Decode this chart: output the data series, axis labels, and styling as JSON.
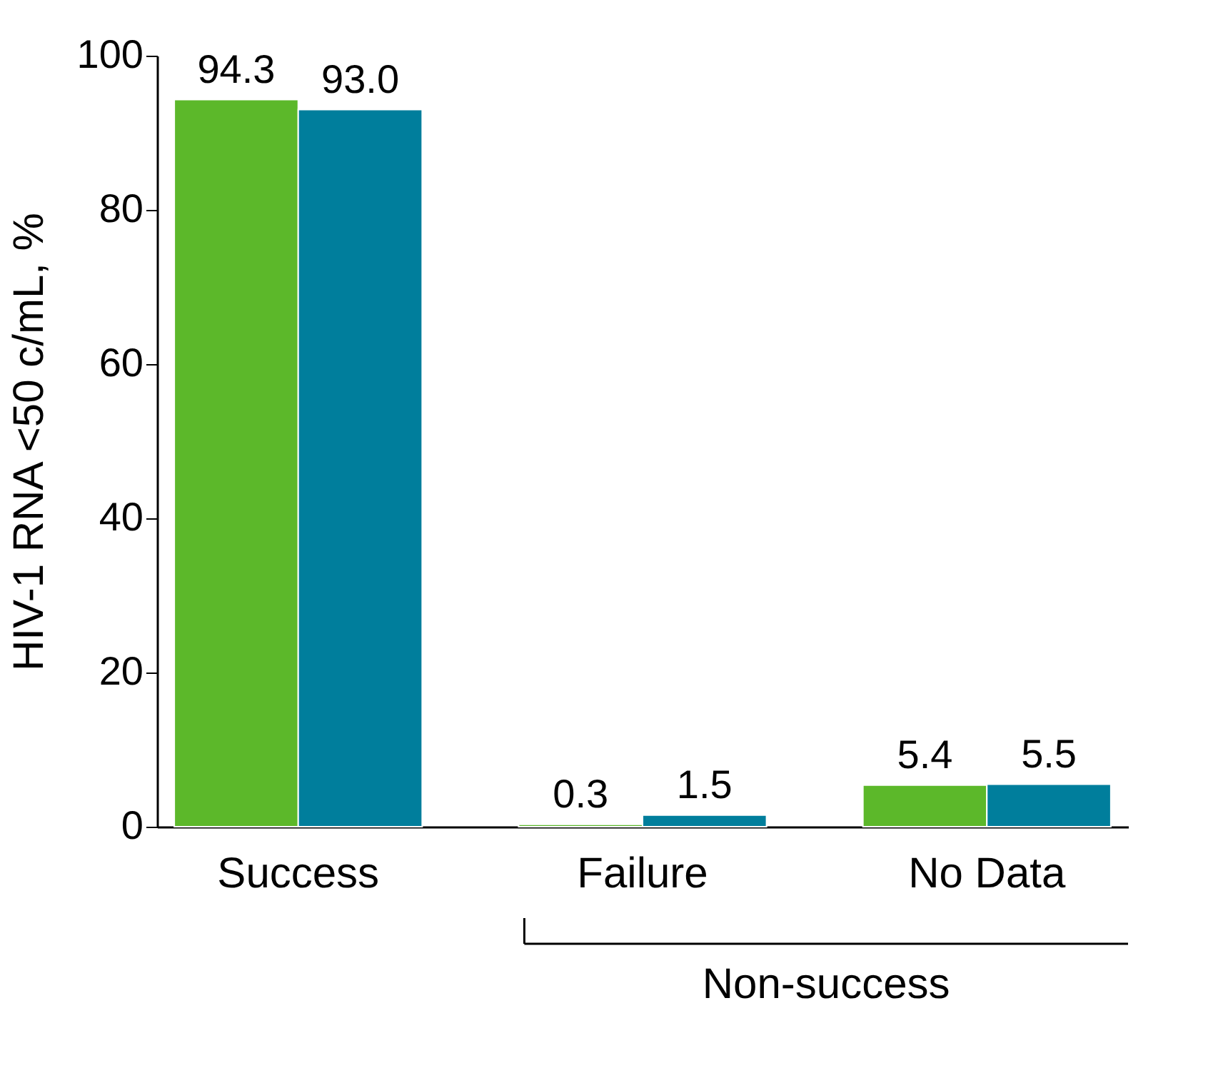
{
  "chart_data": {
    "type": "bar",
    "ylabel": "HIV-1 RNA <50 c/mL, %",
    "categories": [
      "Success",
      "Failure",
      "No Data"
    ],
    "series": [
      {
        "color": "#5cb82a",
        "values": [
          94.3,
          0.3,
          5.4
        ],
        "value_labels": [
          "94.3",
          "0.3",
          "5.4"
        ]
      },
      {
        "color": "#007e9c",
        "values": [
          93.0,
          1.5,
          5.5
        ],
        "value_labels": [
          "93.0",
          "1.5",
          "5.5"
        ]
      }
    ],
    "ylim": [
      0,
      100
    ],
    "yticks": [
      0,
      20,
      40,
      60,
      80,
      100
    ],
    "grid": false,
    "legend": false,
    "annotations": [
      "Non-success"
    ]
  }
}
